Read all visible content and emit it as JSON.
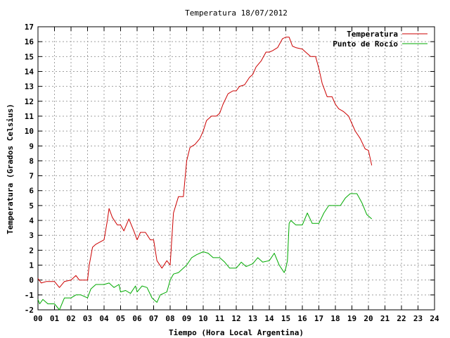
{
  "chart_data": {
    "type": "line",
    "title": "Temperatura 18/07/2012",
    "xlabel": "Tiempo (Hora Local Argentina)",
    "ylabel": "Temperatura (Grados Celsius)",
    "xlim": [
      0,
      24
    ],
    "ylim": [
      -2,
      17
    ],
    "x_ticks": [
      "00",
      "01",
      "02",
      "03",
      "04",
      "05",
      "06",
      "07",
      "08",
      "09",
      "10",
      "11",
      "12",
      "13",
      "14",
      "15",
      "16",
      "17",
      "18",
      "19",
      "20",
      "21",
      "22",
      "23",
      "24"
    ],
    "y_ticks": [
      "-2",
      "-1",
      "0",
      "1",
      "2",
      "3",
      "4",
      "5",
      "6",
      "7",
      "8",
      "9",
      "10",
      "11",
      "12",
      "13",
      "14",
      "15",
      "16",
      "17"
    ],
    "grid": true,
    "legend_position": "top-right",
    "series": [
      {
        "name": "Temperatura",
        "color": "#cc0000",
        "x": [
          0.0,
          0.2,
          0.5,
          1.0,
          1.3,
          1.6,
          2.0,
          2.3,
          2.5,
          2.8,
          3.0,
          3.1,
          3.3,
          3.5,
          4.0,
          4.2,
          4.3,
          4.5,
          4.8,
          5.0,
          5.2,
          5.5,
          5.8,
          6.0,
          6.2,
          6.5,
          6.8,
          7.0,
          7.2,
          7.5,
          7.8,
          8.0,
          8.2,
          8.5,
          8.8,
          9.0,
          9.2,
          9.5,
          9.8,
          10.0,
          10.2,
          10.5,
          10.8,
          11.0,
          11.2,
          11.5,
          11.8,
          12.0,
          12.2,
          12.5,
          12.8,
          13.0,
          13.2,
          13.5,
          13.8,
          14.0,
          14.2,
          14.5,
          14.8,
          15.0,
          15.2,
          15.4,
          15.6,
          16.0,
          16.2,
          16.5,
          16.8,
          17.0,
          17.2,
          17.5,
          17.8,
          18.0,
          18.2,
          18.5,
          18.8,
          19.0,
          19.2,
          19.5,
          19.8,
          20.0,
          20.2
        ],
        "y": [
          0.1,
          -0.2,
          -0.1,
          -0.1,
          -0.5,
          -0.1,
          0.0,
          0.3,
          0.0,
          0.0,
          0.0,
          1.0,
          2.2,
          2.4,
          2.7,
          4.0,
          4.8,
          4.2,
          3.7,
          3.7,
          3.3,
          4.1,
          3.3,
          2.7,
          3.2,
          3.2,
          2.7,
          2.7,
          1.3,
          0.8,
          1.3,
          1.0,
          4.5,
          5.6,
          5.6,
          8.0,
          8.9,
          9.1,
          9.5,
          10.0,
          10.7,
          11.0,
          11.0,
          11.2,
          11.8,
          12.5,
          12.7,
          12.7,
          13.0,
          13.1,
          13.6,
          13.8,
          14.3,
          14.7,
          15.3,
          15.3,
          15.4,
          15.6,
          16.2,
          16.3,
          16.3,
          15.7,
          15.6,
          15.5,
          15.3,
          15.0,
          15.0,
          14.2,
          13.2,
          12.3,
          12.3,
          11.8,
          11.5,
          11.3,
          11.0,
          10.5,
          10.0,
          9.5,
          8.8,
          8.7,
          7.7
        ]
      },
      {
        "name": "Punto de Rocío",
        "color": "#00aa00",
        "x": [
          0.0,
          0.1,
          0.3,
          0.6,
          1.0,
          1.3,
          1.6,
          2.0,
          2.3,
          2.6,
          3.0,
          3.2,
          3.5,
          4.0,
          4.3,
          4.6,
          4.9,
          5.0,
          5.3,
          5.6,
          5.9,
          6.0,
          6.3,
          6.6,
          6.9,
          7.0,
          7.2,
          7.4,
          7.6,
          7.8,
          8.0,
          8.2,
          8.5,
          8.8,
          9.0,
          9.3,
          9.6,
          10.0,
          10.3,
          10.6,
          11.0,
          11.3,
          11.6,
          12.0,
          12.3,
          12.6,
          13.0,
          13.3,
          13.6,
          14.0,
          14.3,
          14.6,
          14.9,
          15.0,
          15.1,
          15.2,
          15.3,
          15.6,
          16.0,
          16.3,
          16.6,
          17.0,
          17.3,
          17.6,
          18.0,
          18.3,
          18.6,
          18.9,
          19.0,
          19.3,
          19.6,
          19.9,
          20.2
        ],
        "y": [
          -1.3,
          -1.6,
          -1.3,
          -1.6,
          -1.6,
          -2.0,
          -1.2,
          -1.2,
          -1.0,
          -1.0,
          -1.2,
          -0.6,
          -0.3,
          -0.3,
          -0.2,
          -0.5,
          -0.3,
          -0.8,
          -0.7,
          -0.9,
          -0.4,
          -0.8,
          -0.4,
          -0.5,
          -1.2,
          -1.3,
          -1.5,
          -1.0,
          -0.9,
          -0.8,
          0.0,
          0.4,
          0.5,
          0.8,
          1.0,
          1.5,
          1.7,
          1.9,
          1.8,
          1.5,
          1.5,
          1.2,
          0.8,
          0.8,
          1.2,
          0.9,
          1.1,
          1.5,
          1.2,
          1.3,
          1.8,
          1.0,
          0.5,
          0.8,
          1.3,
          3.8,
          4.0,
          3.7,
          3.7,
          4.5,
          3.8,
          3.8,
          4.5,
          5.0,
          5.0,
          5.0,
          5.5,
          5.8,
          5.8,
          5.8,
          5.2,
          4.4,
          4.1
        ]
      }
    ]
  }
}
